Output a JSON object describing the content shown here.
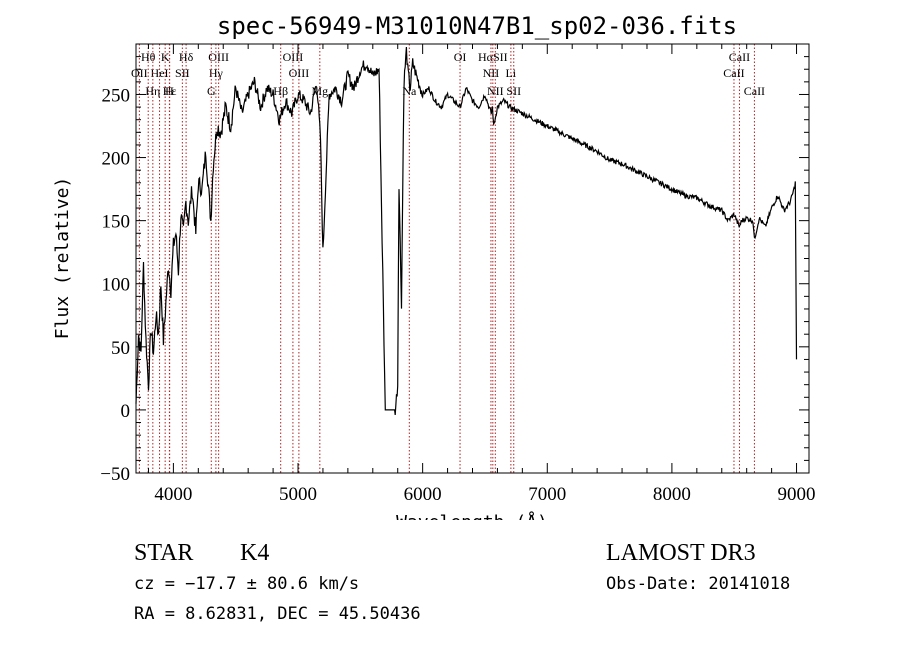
{
  "chart_data": {
    "type": "line",
    "title": "spec-56949-M31010N47B1_sp02-036.fits",
    "xlabel": "Wavelength (Å)",
    "ylabel": "Flux (relative)",
    "xlim": [
      3700,
      9100
    ],
    "ylim": [
      -50,
      290
    ],
    "xticks": [
      4000,
      5000,
      6000,
      7000,
      8000,
      9000
    ],
    "yticks": [
      -50,
      0,
      50,
      100,
      150,
      200,
      250
    ],
    "series": [
      {
        "name": "flux",
        "x": [
          3700,
          3720,
          3740,
          3760,
          3780,
          3800,
          3820,
          3840,
          3860,
          3880,
          3900,
          3920,
          3940,
          3960,
          3980,
          4000,
          4020,
          4040,
          4060,
          4080,
          4100,
          4120,
          4150,
          4180,
          4200,
          4230,
          4260,
          4300,
          4320,
          4350,
          4380,
          4420,
          4460,
          4500,
          4550,
          4600,
          4650,
          4700,
          4750,
          4800,
          4850,
          4900,
          4950,
          5000,
          5050,
          5100,
          5150,
          5180,
          5200,
          5250,
          5300,
          5350,
          5400,
          5450,
          5500,
          5550,
          5600,
          5650,
          5700,
          5720,
          5740,
          5760,
          5780,
          5800,
          5810,
          5830,
          5850,
          5870,
          5880,
          5900,
          5920,
          5950,
          6000,
          6050,
          6100,
          6150,
          6200,
          6250,
          6300,
          6350,
          6400,
          6450,
          6500,
          6550,
          6560,
          6570,
          6600,
          6650,
          6700,
          6800,
          6900,
          7000,
          7100,
          7200,
          7300,
          7400,
          7500,
          7600,
          7700,
          7800,
          7900,
          8000,
          8100,
          8200,
          8300,
          8400,
          8450,
          8500,
          8540,
          8560,
          8600,
          8650,
          8662,
          8700,
          8750,
          8800,
          8850,
          8900,
          8950,
          8980,
          8990,
          9000
        ],
        "y": [
          5,
          60,
          45,
          115,
          55,
          20,
          65,
          45,
          75,
          60,
          100,
          55,
          85,
          115,
          95,
          130,
          140,
          110,
          155,
          140,
          165,
          150,
          175,
          140,
          180,
          175,
          205,
          150,
          195,
          225,
          220,
          240,
          225,
          255,
          235,
          250,
          260,
          240,
          255,
          250,
          230,
          245,
          235,
          250,
          245,
          235,
          260,
          215,
          125,
          250,
          255,
          245,
          265,
          255,
          270,
          275,
          265,
          270,
          0,
          0,
          0,
          0,
          0,
          20,
          180,
          85,
          260,
          285,
          270,
          255,
          275,
          265,
          250,
          255,
          245,
          240,
          250,
          245,
          240,
          255,
          245,
          240,
          250,
          235,
          240,
          225,
          240,
          245,
          240,
          235,
          230,
          225,
          220,
          215,
          210,
          205,
          198,
          195,
          190,
          185,
          180,
          175,
          170,
          168,
          162,
          158,
          150,
          155,
          145,
          150,
          152,
          150,
          135,
          152,
          145,
          160,
          170,
          158,
          165,
          175,
          180,
          40
        ]
      }
    ],
    "line_groups": [
      {
        "labels": [
          "Hθ",
          "K",
          "Hδ",
          "OIII",
          "OIII",
          "OI",
          "HαSII",
          "CaII"
        ],
        "x": [
          3798,
          3934,
          4102,
          4363,
          4959,
          6300,
          6563,
          8542
        ]
      },
      {
        "labels": [
          "OII",
          "HeI",
          "SII",
          "Hγ",
          "OIII",
          "NII",
          "Li",
          "CaII"
        ],
        "x": [
          3727,
          3889,
          4072,
          4341,
          5007,
          6548,
          6708,
          8498
        ]
      },
      {
        "labels": [
          "Hε",
          "Hη",
          "H",
          "G",
          "Hβ",
          "Mg",
          "Na",
          "NII",
          "SII",
          "CaII"
        ],
        "x": [
          3970,
          3835,
          3968,
          4304,
          4861,
          5175,
          5893,
          6583,
          6731,
          8662
        ]
      }
    ]
  },
  "info": {
    "star_label": "STAR",
    "spec_class": "K4",
    "cz": "cz = −17.7 ± 80.6 km/s",
    "radec": "RA =   8.62831, DEC =  45.50436",
    "survey": "LAMOST DR3",
    "obs_date": "Obs-Date: 20141018"
  }
}
